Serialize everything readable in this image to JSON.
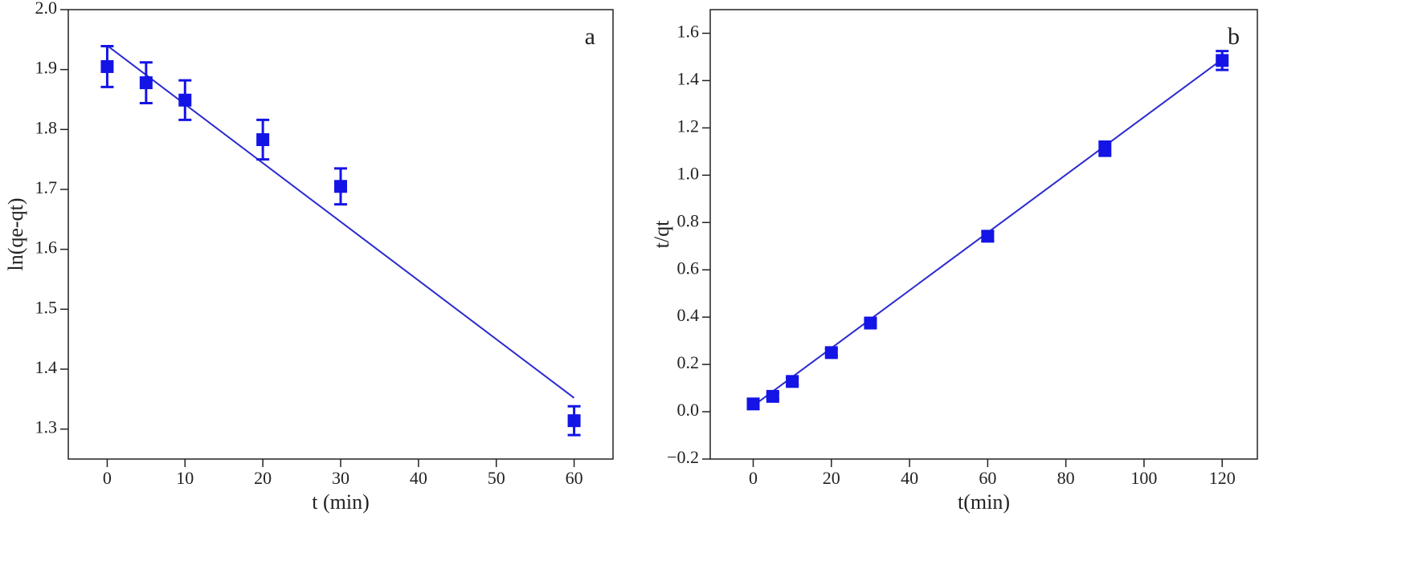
{
  "chart_data": [
    {
      "type": "scatter",
      "panel_label": "a",
      "xlabel": "t (min)",
      "ylabel": "ln(qe-qt)",
      "xlim": [
        -5,
        65
      ],
      "xticks": [
        0,
        10,
        20,
        30,
        40,
        50,
        60
      ],
      "ylim": [
        1.25,
        2.0
      ],
      "yticks": [
        1.3,
        1.4,
        1.5,
        1.6,
        1.7,
        1.8,
        1.9,
        {
          "value": 2.0,
          "label": "2.0"
        }
      ],
      "x": [
        0,
        5,
        10,
        20,
        30,
        60
      ],
      "series": [
        {
          "color": "#1414e6",
          "values": [
            1.905,
            1.878,
            1.849,
            1.783,
            1.705,
            1.314
          ],
          "errors": [
            0.034,
            0.034,
            0.033,
            0.033,
            0.03,
            0.024
          ]
        }
      ],
      "fit": {
        "color": "#2a2ad0",
        "x": [
          0,
          60
        ],
        "values": [
          1.94,
          1.352
        ]
      }
    },
    {
      "type": "scatter",
      "panel_label": "b",
      "xlabel": "t(min)",
      "ylabel": "t/qt",
      "xlim": [
        -11,
        129
      ],
      "xticks": [
        0,
        20,
        40,
        60,
        80,
        100,
        120
      ],
      "ylim": [
        -0.2,
        1.7
      ],
      "yticks": [
        {
          "value": -0.2,
          "label": "−0.2"
        },
        {
          "value": 0,
          "label": "0.0"
        },
        0.2,
        0.4,
        0.6,
        0.8,
        {
          "value": 1,
          "label": "1.0"
        },
        1.2,
        1.4,
        1.6
      ],
      "x": [
        0,
        5,
        10,
        20,
        30,
        60,
        90,
        120
      ],
      "series": [
        {
          "color": "#1414e6",
          "values": [
            0.033,
            0.065,
            0.128,
            0.25,
            0.375,
            0.742,
            1.112,
            1.485
          ],
          "errors": [
            0.02,
            0.012,
            0.015,
            0.015,
            0.012,
            0.02,
            0.03,
            0.04
          ]
        }
      ],
      "fit": {
        "color": "#2a2ad0",
        "x": [
          0,
          120
        ],
        "values": [
          0.025,
          1.49
        ]
      }
    }
  ]
}
